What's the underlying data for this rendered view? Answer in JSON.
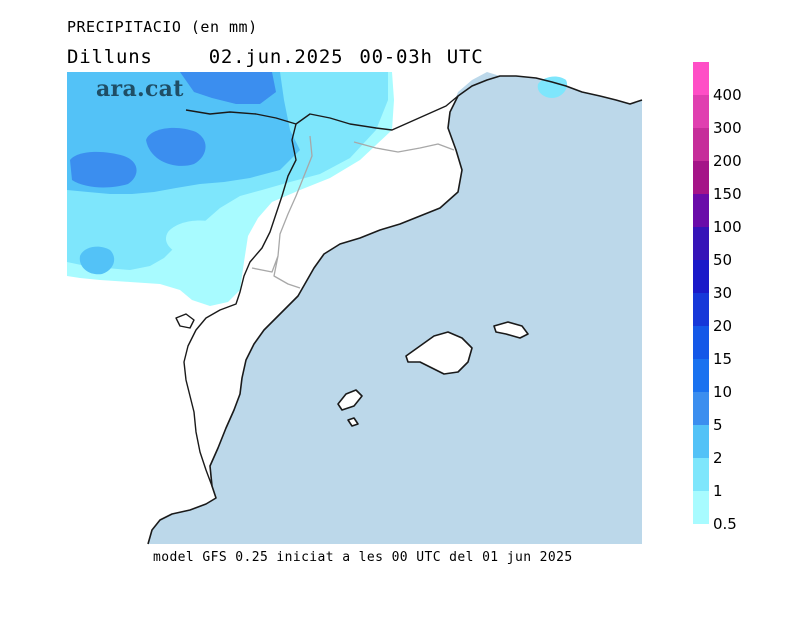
{
  "header": {
    "title": "PRECIPITACIO (en mm)",
    "day": "Dilluns",
    "date": "02.jun.2025",
    "time_range": "00-03h",
    "timezone": "UTC"
  },
  "logo": {
    "text": "ara.cat"
  },
  "footer": {
    "text": "model GFS 0.25 iniciat a les 00 UTC del 01 jun 2025"
  },
  "legend": {
    "labels": [
      "400",
      "300",
      "200",
      "150",
      "100",
      "50",
      "30",
      "20",
      "15",
      "10",
      "5",
      "2",
      "1",
      "0.5"
    ],
    "colors": [
      "#ff4ec6",
      "#e03fb0",
      "#c62e9a",
      "#a51488",
      "#6a0ca9",
      "#3614b8",
      "#1a1ac9",
      "#1638d9",
      "#1458e8",
      "#1a72f0",
      "#3b8eef",
      "#53c2f7",
      "#7ee6fc",
      "#a8fbff"
    ]
  },
  "map_colors": {
    "sea": "#bcd8ea",
    "land": "#ffffff",
    "precip_0_5": "#a8fbff",
    "precip_1": "#7ee6fc",
    "precip_2": "#53c2f7",
    "precip_5": "#3b8eef"
  }
}
